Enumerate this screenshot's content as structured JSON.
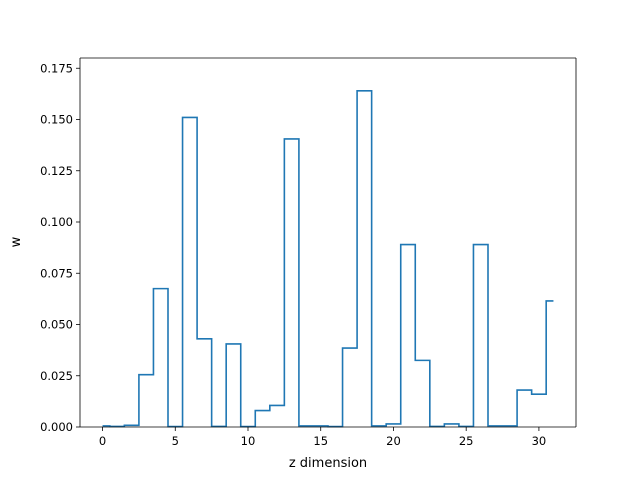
{
  "chart_data": {
    "type": "step",
    "xlabel": "z dimension",
    "ylabel": "w",
    "xlim": [
      -1.55,
      32.55
    ],
    "ylim": [
      0,
      0.18
    ],
    "x_ticks": [
      0,
      5,
      10,
      15,
      20,
      25,
      30
    ],
    "x_tick_labels": [
      "0",
      "5",
      "10",
      "15",
      "20",
      "25",
      "30"
    ],
    "y_ticks": [
      0,
      0.025,
      0.05,
      0.075,
      0.1,
      0.125,
      0.15,
      0.175
    ],
    "y_tick_labels": [
      "0.000",
      "0.025",
      "0.050",
      "0.075",
      "0.100",
      "0.125",
      "0.150",
      "0.175"
    ],
    "grid": false,
    "series": [
      {
        "color": "#1f77b4",
        "step_where": "mid",
        "x": [
          0,
          1,
          2,
          3,
          4,
          5,
          6,
          7,
          8,
          9,
          10,
          11,
          12,
          13,
          14,
          15,
          16,
          17,
          18,
          19,
          20,
          21,
          22,
          23,
          24,
          25,
          26,
          27,
          28,
          29,
          30,
          31
        ],
        "values": [
          0.0005,
          0.0003,
          0.0008,
          0.0255,
          0.0675,
          0.0002,
          0.151,
          0.043,
          0.0003,
          0.0405,
          0.0002,
          0.008,
          0.0105,
          0.1405,
          0.0005,
          0.0005,
          0.0002,
          0.0385,
          0.164,
          0.0005,
          0.0015,
          0.089,
          0.0325,
          0.0003,
          0.0015,
          0.0003,
          0.089,
          0.0005,
          0.0005,
          0.018,
          0.016,
          0.0615
        ]
      }
    ]
  }
}
